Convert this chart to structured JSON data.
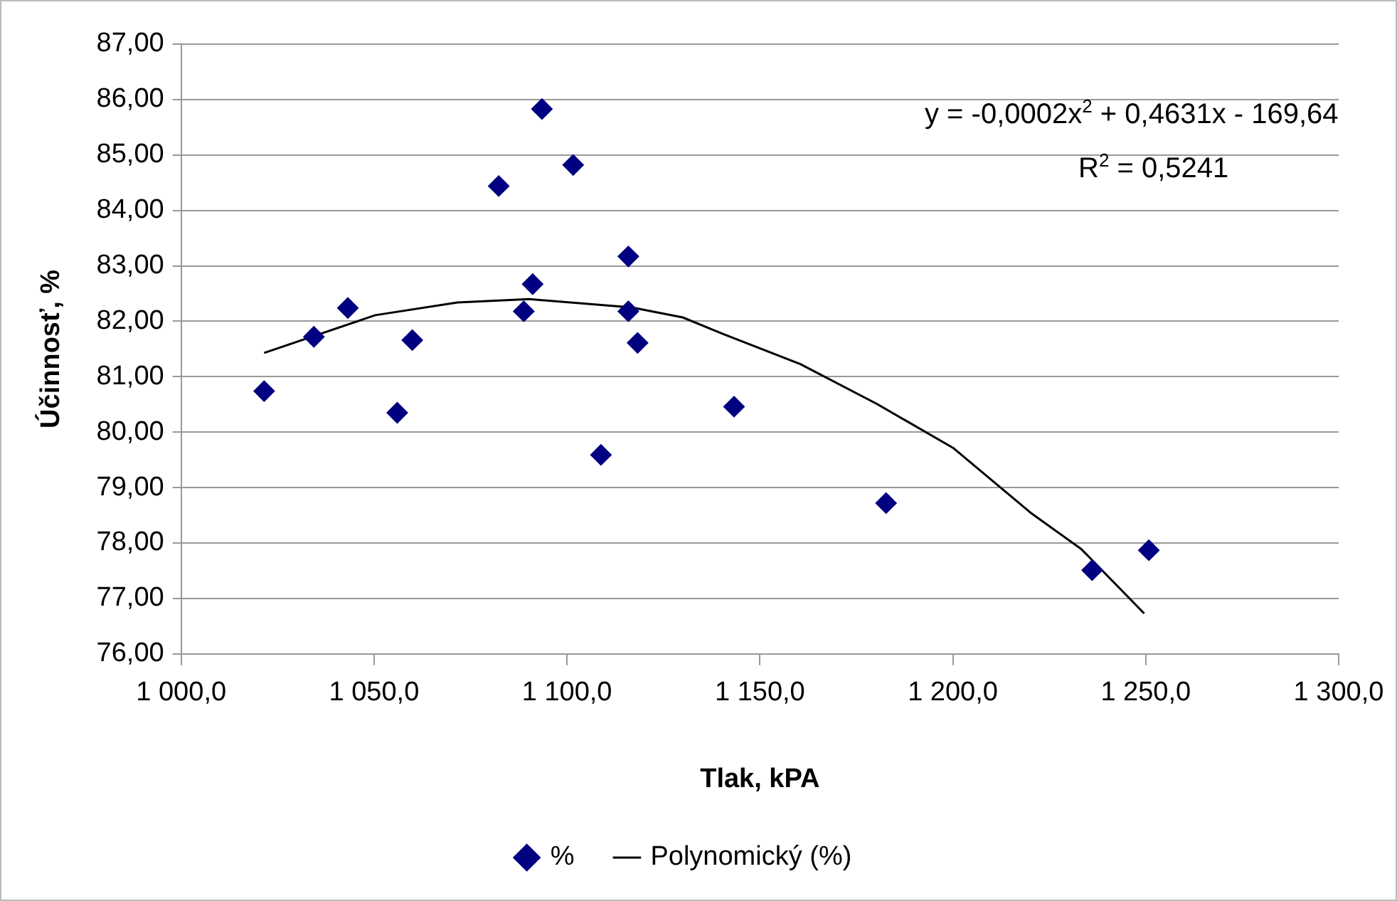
{
  "chart_data": {
    "type": "scatter",
    "xlabel": "Tlak, kPA",
    "ylabel": "Účinnosť, %",
    "series": [
      {
        "name": "%",
        "color": "#000080",
        "marker": "diamond",
        "x": [
          1021.5,
          1034.4,
          1043.2,
          1056.0,
          1059.9,
          1082.3,
          1088.8,
          1091.1,
          1093.5,
          1101.6,
          1108.8,
          1115.9,
          1115.9,
          1118.3,
          1143.3,
          1182.7,
          1236.1,
          1250.8
        ],
        "values": [
          80.74,
          81.72,
          82.24,
          80.35,
          81.66,
          84.44,
          82.18,
          82.67,
          85.83,
          84.82,
          79.59,
          83.17,
          82.18,
          81.61,
          80.46,
          78.72,
          77.51,
          77.87
        ]
      },
      {
        "name": "Polynomický (%)",
        "type": "line",
        "color": "#000000",
        "marker": "none",
        "line_style": "solid",
        "x": [
          1021.5,
          1050.3,
          1071.6,
          1090.2,
          1116.8,
          1130.0,
          1140.5,
          1160.4,
          1180.3,
          1200.2,
          1220.1,
          1233.3,
          1249.6
        ],
        "values": [
          81.43,
          82.11,
          82.34,
          82.4,
          82.25,
          82.07,
          81.77,
          81.23,
          80.51,
          79.71,
          78.55,
          77.89,
          76.73
        ]
      }
    ],
    "xlim": [
      1000,
      1300
    ],
    "xticks": [
      {
        "value": 1000,
        "label": "1 000,0"
      },
      {
        "value": 1050,
        "label": "1 050,0"
      },
      {
        "value": 1100,
        "label": "1 100,0"
      },
      {
        "value": 1150,
        "label": "1 150,0"
      },
      {
        "value": 1200,
        "label": "1 200,0"
      },
      {
        "value": 1250,
        "label": "1 250,0"
      },
      {
        "value": 1300,
        "label": "1 300,0"
      }
    ],
    "ylim": [
      76,
      87
    ],
    "yticks": [
      {
        "value": 76,
        "label": "76,00"
      },
      {
        "value": 77,
        "label": "77,00"
      },
      {
        "value": 78,
        "label": "78,00"
      },
      {
        "value": 79,
        "label": "79,00"
      },
      {
        "value": 80,
        "label": "80,00"
      },
      {
        "value": 81,
        "label": "81,00"
      },
      {
        "value": 82,
        "label": "82,00"
      },
      {
        "value": 83,
        "label": "83,00"
      },
      {
        "value": 84,
        "label": "84,00"
      },
      {
        "value": 85,
        "label": "85,00"
      },
      {
        "value": 86,
        "label": "86,00"
      },
      {
        "value": 87,
        "label": "87,00"
      }
    ],
    "grid": "y",
    "legend": "bottom",
    "annotations": [
      "y = -0,0002x$^{2}$ + 0,4631x - 169,64",
      "R$^{2}$ = 0,5241"
    ]
  }
}
